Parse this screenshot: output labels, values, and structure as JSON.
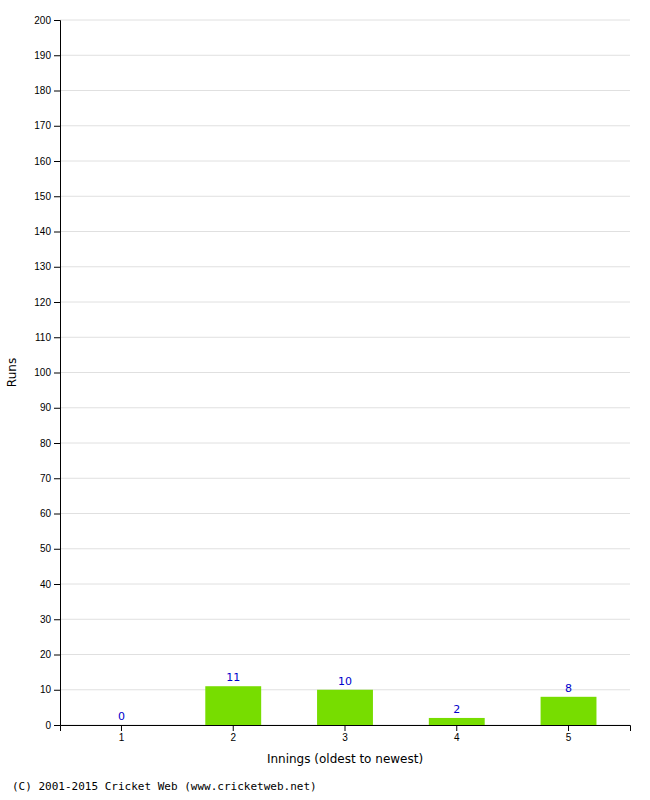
{
  "chart_data": {
    "type": "bar",
    "xlabel": "Innings (oldest to newest)",
    "ylabel": "Runs",
    "categories": [
      "1",
      "2",
      "3",
      "4",
      "5"
    ],
    "values": [
      0,
      11,
      10,
      2,
      8
    ],
    "color": "#77dd00",
    "ylim": [
      0,
      200
    ],
    "yticks": [
      0,
      10,
      20,
      30,
      40,
      50,
      60,
      70,
      80,
      90,
      100,
      110,
      120,
      130,
      140,
      150,
      160,
      170,
      180,
      190,
      200
    ],
    "grid": true,
    "data_labels": true,
    "annotations": [
      "(C) 2001-2015 Cricket Web (www.cricketweb.net)"
    ]
  }
}
